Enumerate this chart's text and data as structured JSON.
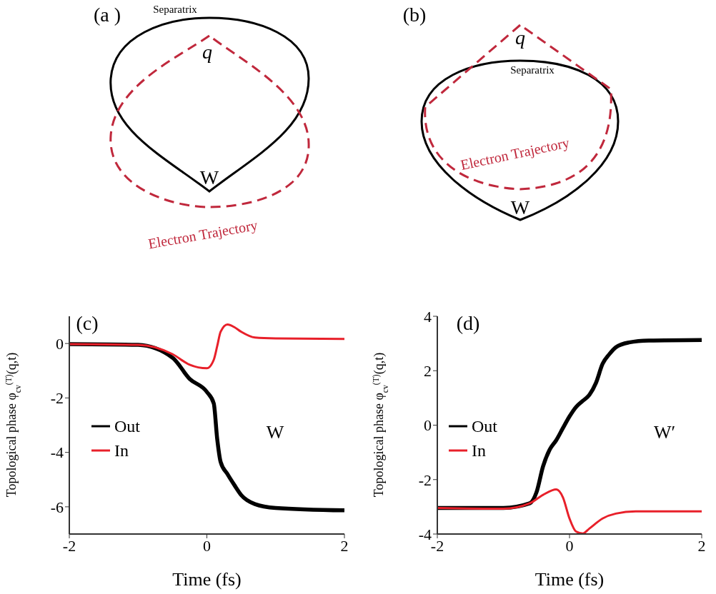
{
  "chart_data": [
    {
      "type": "other",
      "annotations": [
        "(a )",
        "Separatrix",
        "q",
        "W",
        "Electron Trajectory"
      ]
    },
    {
      "type": "other",
      "annotations": [
        "(b)",
        "q",
        "Separatrix",
        "Electron Trajectory",
        "W"
      ]
    },
    {
      "type": "line",
      "xlabel": "Time (fs)",
      "ylabel": "Topological phase φ$_{cv}$$^{(T)}$(q,t)",
      "xlim": [
        -2,
        2
      ],
      "xticks": [
        -2,
        0,
        2
      ],
      "ylim": [
        -7,
        1
      ],
      "yticks": [
        -6,
        -4,
        -2,
        0
      ],
      "legend": "left",
      "annotations": [
        "(c)",
        "W"
      ],
      "series": [
        {
          "name": "Out",
          "color": "#000000",
          "x": [
            -2,
            -1,
            -0.5,
            -0.25,
            0,
            0.1,
            0.15,
            0.2,
            0.3,
            0.4,
            0.5,
            0.7,
            1,
            2
          ],
          "values": [
            -0.02,
            -0.05,
            -0.52,
            -1.3,
            -1.78,
            -2.2,
            -3.5,
            -4.35,
            -4.8,
            -5.2,
            -5.57,
            -5.9,
            -6.04,
            -6.13
          ]
        },
        {
          "name": "In",
          "color": "#e8202a",
          "x": [
            -2,
            -1,
            -0.5,
            -0.25,
            0,
            0.1,
            0.15,
            0.2,
            0.3,
            0.4,
            0.5,
            0.7,
            1,
            2
          ],
          "values": [
            -0.02,
            -0.05,
            -0.39,
            -0.78,
            -0.91,
            -0.6,
            -0.1,
            0.43,
            0.7,
            0.6,
            0.43,
            0.22,
            0.19,
            0.17
          ]
        }
      ]
    },
    {
      "type": "line",
      "xlabel": "Time (fs)",
      "ylabel": "Topological phase φ$_{cv}$$^{(T)}$(q,t)",
      "xlim": [
        -2,
        2
      ],
      "xticks": [
        -2,
        0,
        2
      ],
      "ylim": [
        -4,
        4
      ],
      "yticks": [
        -4,
        -2,
        0,
        2,
        4
      ],
      "legend": "left",
      "annotations": [
        "(d)",
        "W′"
      ],
      "series": [
        {
          "name": "Out",
          "color": "#000000",
          "x": [
            -2,
            -1,
            -0.6,
            -0.5,
            -0.4,
            -0.3,
            -0.2,
            -0.1,
            0,
            0.1,
            0.2,
            0.3,
            0.4,
            0.5,
            0.6,
            0.7,
            0.9,
            1.2,
            2
          ],
          "values": [
            -3.04,
            -3.04,
            -2.87,
            -2.47,
            -1.51,
            -0.9,
            -0.55,
            -0.11,
            0.32,
            0.67,
            0.89,
            1.11,
            1.55,
            2.25,
            2.6,
            2.86,
            3.04,
            3.11,
            3.13
          ]
        },
        {
          "name": "In",
          "color": "#e8202a",
          "x": [
            -2,
            -1,
            -0.6,
            -0.4,
            -0.2,
            -0.1,
            0,
            0.1,
            0.2,
            0.3,
            0.5,
            0.7,
            1,
            2
          ],
          "values": [
            -3.04,
            -3.07,
            -2.87,
            -2.56,
            -2.36,
            -2.65,
            -3.43,
            -3.91,
            -3.98,
            -3.8,
            -3.43,
            -3.25,
            -3.17,
            -3.17
          ]
        }
      ]
    }
  ]
}
